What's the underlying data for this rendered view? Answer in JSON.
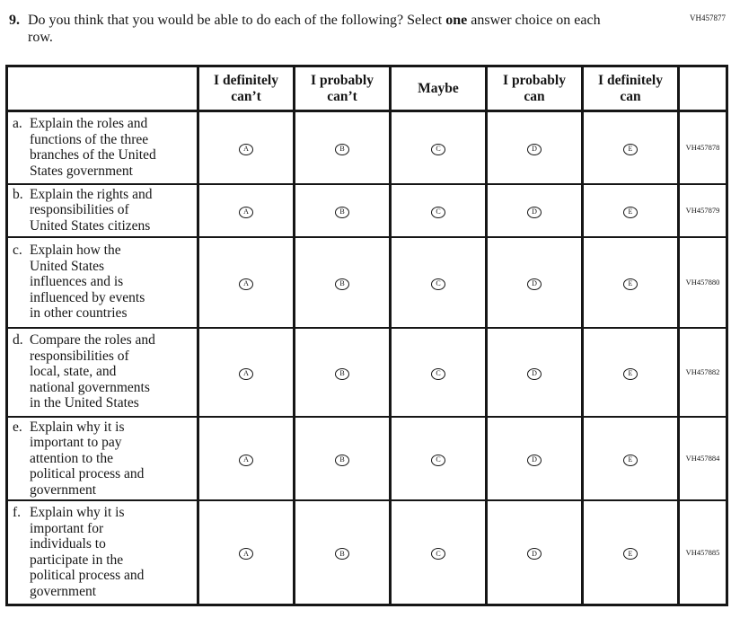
{
  "page": {
    "top_code": "VH457877"
  },
  "question": {
    "number": "9.",
    "text_before_bold": "Do you think that you would be able to do each of the following? Select ",
    "bold_word": "one",
    "text_after_bold": " answer choice on each row."
  },
  "table": {
    "columns": [
      "I definitely\ncan’t",
      "I probably\ncan’t",
      "Maybe",
      "I probably\ncan",
      "I definitely\ncan"
    ],
    "options": [
      "A",
      "B",
      "C",
      "D",
      "E"
    ],
    "rows": [
      {
        "label": "a.",
        "statement": "Explain the roles and\nfunctions of the three\nbranches of the United\nStates government",
        "code": "VH457878"
      },
      {
        "label": "b.",
        "statement": "Explain the rights and\nresponsibilities of\nUnited States citizens",
        "code": "VH457879"
      },
      {
        "label": "c.",
        "statement": "Explain how the\nUnited States\ninfluences and is\ninfluenced by events\nin other countries",
        "code": "VH457880"
      },
      {
        "label": "d.",
        "statement": "Compare the roles and\nresponsibilities of\nlocal, state, and\nnational governments\nin the United States",
        "code": "VH457882"
      },
      {
        "label": "e.",
        "statement": "Explain why it is\nimportant to pay\nattention to the\npolitical process and\ngovernment",
        "code": "VH457884"
      },
      {
        "label": "f.",
        "statement": "Explain why it is\nimportant for\nindividuals to\nparticipate in the\npolitical process and\ngovernment",
        "code": "VH457885"
      }
    ]
  }
}
